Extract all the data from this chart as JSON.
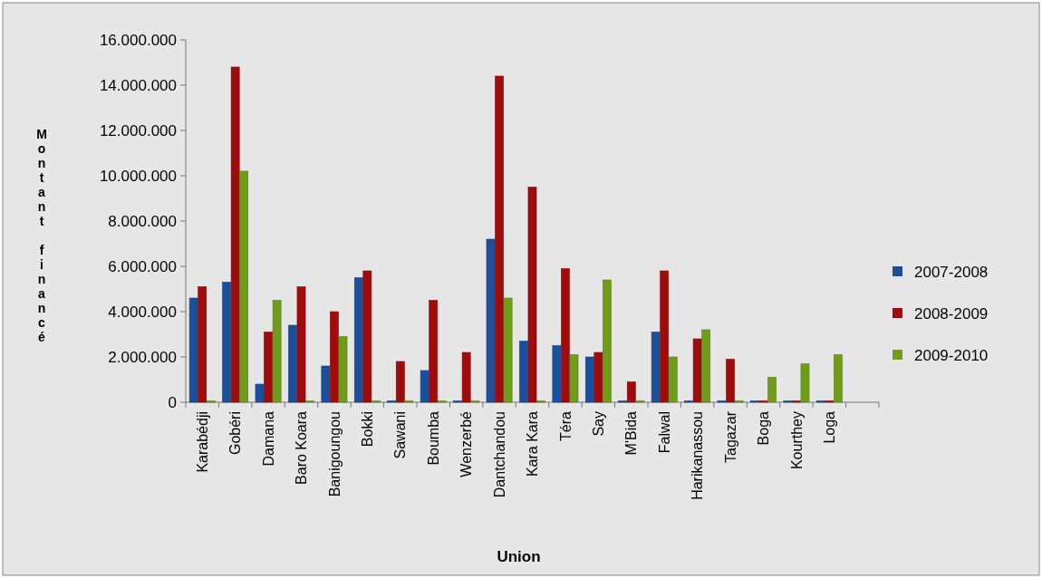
{
  "chart_data": {
    "type": "bar",
    "xlabel": "Union",
    "ylabel": "Montant financé",
    "categories": [
      "Karabédji",
      "Gobéri",
      "Damana",
      "Baro Koara",
      "Banigoungou",
      "Bokki",
      "Sawani",
      "Boumba",
      "Wenzerbé",
      "Dantchandou",
      "Kara Kara",
      "Téra",
      "Say",
      "M'Bida",
      "Falwal",
      "Harikanassou",
      "Tagazar",
      "Boga",
      "Kourthey",
      "Loga",
      null
    ],
    "series": [
      {
        "name": "2007-2008",
        "color": "#1a4f9c",
        "values": [
          4600000,
          5300000,
          800000,
          3400000,
          1600000,
          5500000,
          0,
          1400000,
          0,
          7200000,
          2700000,
          2500000,
          2000000,
          0,
          3100000,
          0,
          0,
          0,
          0,
          0,
          null
        ]
      },
      {
        "name": "2008-2009",
        "color": "#a00c0c",
        "values": [
          5100000,
          14800000,
          3100000,
          5100000,
          4000000,
          5800000,
          1800000,
          4500000,
          2200000,
          14400000,
          9500000,
          5900000,
          2200000,
          900000,
          5800000,
          2800000,
          1900000,
          0,
          0,
          0,
          null
        ]
      },
      {
        "name": "2009-2010",
        "color": "#6f9c1a",
        "values": [
          0,
          10200000,
          4500000,
          0,
          2900000,
          0,
          0,
          0,
          0,
          4600000,
          0,
          2100000,
          5400000,
          0,
          2000000,
          3200000,
          0,
          1100000,
          1700000,
          2100000,
          null
        ]
      }
    ],
    "ylim": [
      0,
      16000000
    ],
    "yticks": [
      {
        "value": 0,
        "label": "0"
      },
      {
        "value": 2000000,
        "label": "2.000.000"
      },
      {
        "value": 4000000,
        "label": "4.000.000"
      },
      {
        "value": 6000000,
        "label": "6.000.000"
      },
      {
        "value": 8000000,
        "label": "8.000.000"
      },
      {
        "value": 10000000,
        "label": "10.000.000"
      },
      {
        "value": 12000000,
        "label": "12.000.000"
      },
      {
        "value": 14000000,
        "label": "14.000.000"
      },
      {
        "value": 16000000,
        "label": "16.000.000"
      }
    ],
    "legend": "right",
    "grid": false
  }
}
